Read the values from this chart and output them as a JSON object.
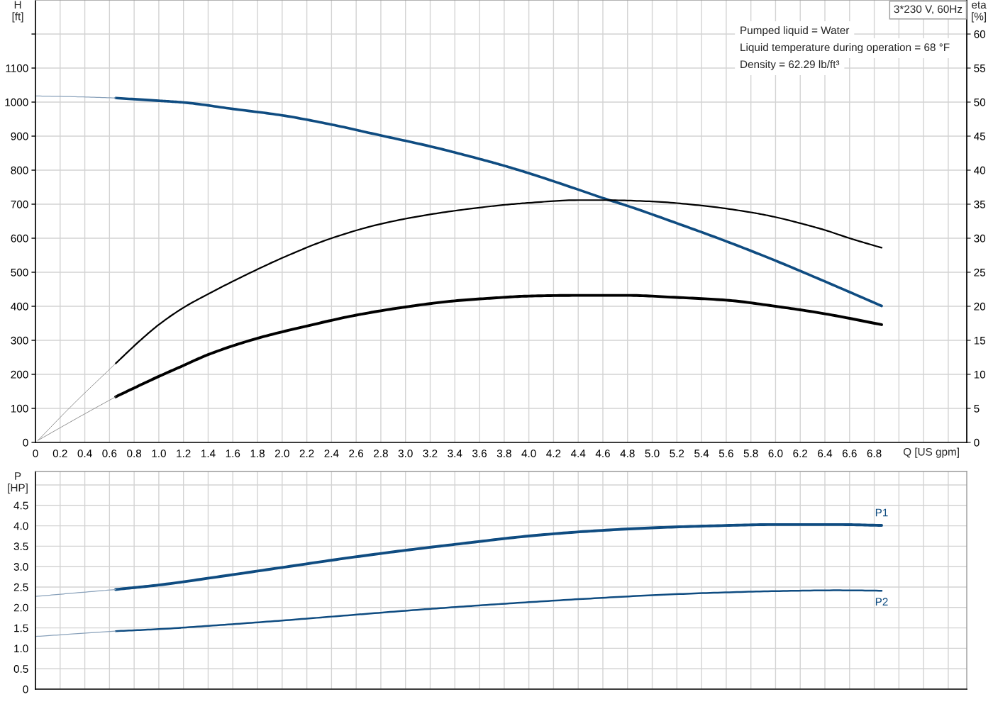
{
  "chart_data": [
    {
      "type": "line",
      "title": "3*230 V, 60Hz",
      "xlabel": "Q [US gpm]",
      "ylabel": "H [ft]",
      "y2label": "eta [%]",
      "annotations": [
        "Pumped liquid = Water",
        "Liquid temperature during operation = 68 °F",
        "Density = 62.29 lb/ft³"
      ],
      "xlim": [
        0,
        7.55
      ],
      "xticks": [
        0,
        0.2,
        0.4,
        0.6,
        0.8,
        {
          "value": 1,
          "label": "1.0"
        },
        1.2,
        1.4,
        1.6,
        1.8,
        {
          "value": 2,
          "label": "2.0"
        },
        2.2,
        2.4,
        2.6,
        2.8,
        {
          "value": 3,
          "label": "3.0"
        },
        3.2,
        3.4,
        3.6,
        3.8,
        {
          "value": 4,
          "label": "4.0"
        },
        4.2,
        4.4,
        4.6,
        4.8,
        {
          "value": 5,
          "label": "5.0"
        },
        5.2,
        5.4,
        5.6,
        5.8,
        {
          "value": 6,
          "label": "6.0"
        },
        6.2,
        6.4,
        6.6,
        6.8,
        {
          "value": 7,
          "label": null
        },
        {
          "value": 7.2,
          "label": null
        },
        {
          "value": 7.4,
          "label": null
        }
      ],
      "ylim": [
        0,
        1300
      ],
      "yticks": [
        0,
        100,
        200,
        300,
        400,
        500,
        600,
        700,
        800,
        900,
        1000,
        1100,
        {
          "value": 1200,
          "label": null
        }
      ],
      "y2lim": [
        0,
        65
      ],
      "y2ticks": [
        0,
        5,
        10,
        15,
        20,
        25,
        30,
        35,
        40,
        45,
        50,
        55,
        60
      ],
      "grid": true,
      "series": [
        {
          "color": "#0f4c81",
          "x": [
            0.65,
            1.0,
            1.2,
            1.6,
            2.0,
            2.4,
            2.8,
            3.2,
            3.6,
            3.8,
            4.0,
            4.4,
            4.6,
            4.8,
            5.2,
            5.6,
            6.0,
            6.4,
            6.86
          ],
          "values": [
            1012,
            1004,
            999,
            980,
            961,
            934,
            902,
            870,
            833,
            813,
            791,
            743,
            718,
            695,
            644,
            591,
            534,
            473,
            401
          ]
        },
        {
          "color": "#8aa2bb",
          "x": [
            0,
            0.3,
            0.65
          ],
          "values": [
            1018,
            1016,
            1012
          ]
        },
        {
          "color": "#000000",
          "axis": "y2",
          "x": [
            0.65,
            0.85,
            1.0,
            1.2,
            1.4,
            1.75,
            2.0,
            2.4,
            2.8,
            3.2,
            3.6,
            3.8,
            4.0,
            4.4,
            4.6,
            5.0,
            5.4,
            5.8,
            6.0,
            6.2,
            6.4,
            6.6,
            6.86
          ],
          "values": [
            11.6,
            15.0,
            17.3,
            19.8,
            21.8,
            25.0,
            27.1,
            30.0,
            32.1,
            33.5,
            34.5,
            34.9,
            35.2,
            35.6,
            35.6,
            35.4,
            34.8,
            33.8,
            33.1,
            32.2,
            31.2,
            30.0,
            28.6
          ]
        },
        {
          "color": "#8c8c8c",
          "axis": "y2",
          "x": [
            0.02,
            0.3,
            0.65
          ],
          "values": [
            0.3,
            5.5,
            11.6
          ]
        },
        {
          "color": "#000000",
          "axis": "y2",
          "x": [
            0.65,
            0.8,
            1.0,
            1.2,
            1.4,
            1.8,
            2.2,
            2.6,
            3.0,
            3.4,
            3.7,
            4.0,
            4.4,
            4.8,
            5.2,
            5.6,
            6.0,
            6.4,
            6.86
          ],
          "values": [
            6.7,
            8.0,
            9.7,
            11.3,
            12.9,
            15.3,
            17.1,
            18.7,
            19.9,
            20.8,
            21.2,
            21.5,
            21.6,
            21.6,
            21.3,
            20.9,
            20.0,
            18.9,
            17.3
          ]
        },
        {
          "color": "#8c8c8c",
          "axis": "y2",
          "x": [
            0.02,
            0.4,
            0.65
          ],
          "values": [
            0.3,
            4.2,
            6.7
          ]
        }
      ]
    },
    {
      "type": "line",
      "ylabel": "P [HP]",
      "tick_labels": "y",
      "grid": true,
      "xlim": [
        0,
        7.55
      ],
      "xticks": [
        0,
        0.2,
        0.4,
        0.6,
        0.8,
        1,
        1.2,
        1.4,
        1.6,
        1.8,
        2,
        2.2,
        2.4,
        2.6,
        2.8,
        3,
        3.2,
        3.4,
        3.6,
        3.8,
        4,
        4.2,
        4.4,
        4.6,
        4.8,
        5,
        5.2,
        5.4,
        5.6,
        5.8,
        6,
        6.2,
        6.4,
        6.6,
        6.8,
        7,
        7.2,
        7.4
      ],
      "ylim": [
        0,
        5.33
      ],
      "yticks": [
        0,
        0.5,
        {
          "value": 1,
          "label": "1.0"
        },
        1.5,
        {
          "value": 2,
          "label": "2.0"
        },
        2.5,
        {
          "value": 3,
          "label": "3.0"
        },
        3.5,
        {
          "value": 4,
          "label": "4.0"
        },
        4.5,
        {
          "value": 5,
          "label": null
        }
      ],
      "series": [
        {
          "name": "P1",
          "color": "#0f4c81",
          "x": [
            0.65,
            1.0,
            1.5,
            2.0,
            2.5,
            3.0,
            3.5,
            4.0,
            4.5,
            5.0,
            5.5,
            6.0,
            6.5,
            6.86
          ],
          "values": [
            2.44,
            2.55,
            2.76,
            2.98,
            3.2,
            3.4,
            3.58,
            3.75,
            3.87,
            3.95,
            4.0,
            4.03,
            4.03,
            4.01
          ]
        },
        {
          "color": "#8aa2bb",
          "x": [
            0,
            0.3,
            0.65
          ],
          "values": [
            2.27,
            2.35,
            2.44
          ]
        },
        {
          "name": "P2",
          "color": "#0f4c81",
          "x": [
            0.65,
            1.0,
            1.5,
            2.0,
            2.5,
            3.0,
            3.5,
            4.0,
            4.5,
            5.0,
            5.5,
            6.0,
            6.5,
            6.86
          ],
          "values": [
            1.42,
            1.47,
            1.57,
            1.68,
            1.8,
            1.92,
            2.03,
            2.13,
            2.22,
            2.3,
            2.36,
            2.4,
            2.42,
            2.41
          ]
        },
        {
          "color": "#8aa2bb",
          "x": [
            0,
            0.3,
            0.65
          ],
          "values": [
            1.29,
            1.35,
            1.42
          ]
        }
      ]
    }
  ]
}
